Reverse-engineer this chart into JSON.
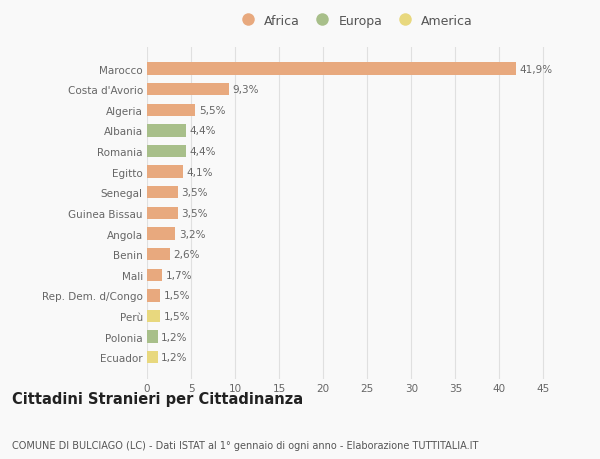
{
  "categories": [
    "Ecuador",
    "Polonia",
    "Perù",
    "Rep. Dem. d/Congo",
    "Mali",
    "Benin",
    "Angola",
    "Guinea Bissau",
    "Senegal",
    "Egitto",
    "Romania",
    "Albania",
    "Algeria",
    "Costa d'Avorio",
    "Marocco"
  ],
  "values": [
    1.2,
    1.2,
    1.5,
    1.5,
    1.7,
    2.6,
    3.2,
    3.5,
    3.5,
    4.1,
    4.4,
    4.4,
    5.5,
    9.3,
    41.9
  ],
  "continents": [
    "America",
    "Europa",
    "America",
    "Africa",
    "Africa",
    "Africa",
    "Africa",
    "Africa",
    "Africa",
    "Africa",
    "Europa",
    "Europa",
    "Africa",
    "Africa",
    "Africa"
  ],
  "labels": [
    "1,2%",
    "1,2%",
    "1,5%",
    "1,5%",
    "1,7%",
    "2,6%",
    "3,2%",
    "3,5%",
    "3,5%",
    "4,1%",
    "4,4%",
    "4,4%",
    "5,5%",
    "9,3%",
    "41,9%"
  ],
  "colors": {
    "Africa": "#e8a97e",
    "Europa": "#a8bf8a",
    "America": "#e8d87e"
  },
  "legend_items": [
    "Africa",
    "Europa",
    "America"
  ],
  "xlim": [
    0,
    47
  ],
  "xticks": [
    0,
    5,
    10,
    15,
    20,
    25,
    30,
    35,
    40,
    45
  ],
  "title": "Cittadini Stranieri per Cittadinanza",
  "subtitle": "COMUNE DI BULCIAGO (LC) - Dati ISTAT al 1° gennaio di ogni anno - Elaborazione TUTTITALIA.IT",
  "background_color": "#f9f9f9",
  "grid_color": "#e0e0e0",
  "bar_height": 0.6,
  "label_fontsize": 7.5,
  "tick_fontsize": 7.5,
  "title_fontsize": 10.5,
  "subtitle_fontsize": 7.0
}
